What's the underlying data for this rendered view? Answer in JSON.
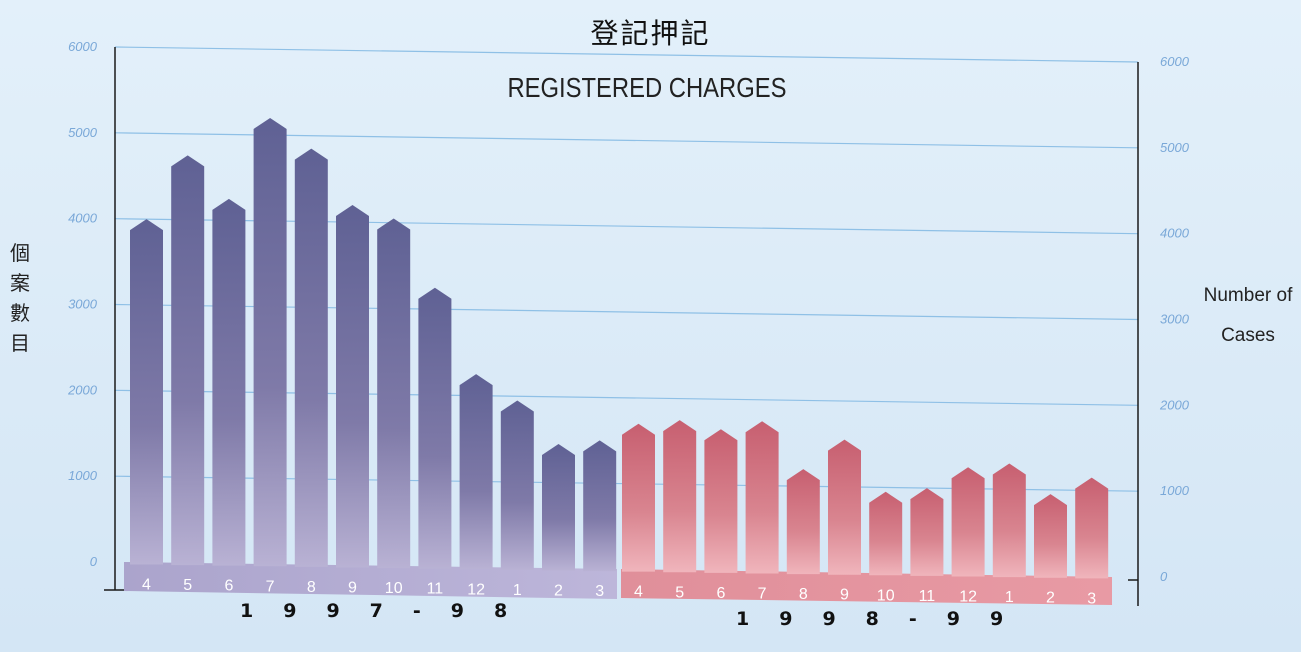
{
  "title_zh": "登記押記",
  "ylabel_zh": "個案數目",
  "ylabel_en": "Number of Cases",
  "chart_data": {
    "type": "bar",
    "title": "REGISTERED CHARGES",
    "ylabel": "Number of Cases",
    "ylim": [
      0,
      6000
    ],
    "yticks": [
      0,
      1000,
      2000,
      3000,
      4000,
      5000,
      6000
    ],
    "grid": true,
    "series": [
      {
        "name": "1997-98",
        "color": "#6a6a9a",
        "categories": [
          "4",
          "5",
          "6",
          "7",
          "8",
          "9",
          "10",
          "11",
          "12",
          "1",
          "2",
          "3"
        ],
        "values": [
          4000,
          4750,
          4250,
          5200,
          4850,
          4200,
          4050,
          3250,
          2250,
          1950,
          1450,
          1500
        ]
      },
      {
        "name": "1998-99",
        "color": "#c8707e",
        "categories": [
          "4",
          "5",
          "6",
          "7",
          "8",
          "9",
          "10",
          "11",
          "12",
          "1",
          "2",
          "3"
        ],
        "values": [
          1700,
          1750,
          1650,
          1750,
          1200,
          1550,
          950,
          1000,
          1250,
          1300,
          950,
          1150
        ]
      }
    ],
    "year_labels": [
      "1997-98",
      "1998-99"
    ]
  }
}
